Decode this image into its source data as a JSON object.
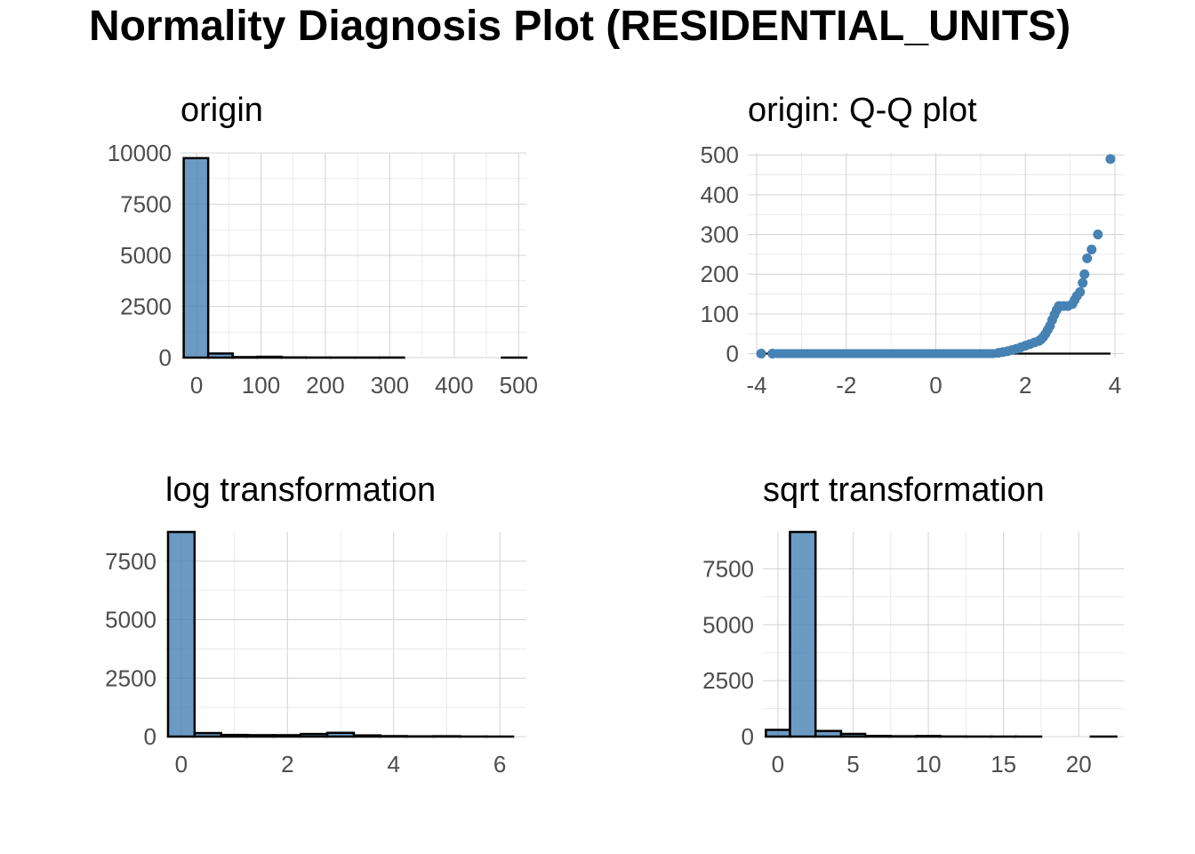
{
  "title": "Normality Diagnosis Plot (RESIDENTIAL_UNITS)",
  "colors": {
    "fill": "#4682b4",
    "outline": "#000000",
    "grid": "#d6d6d6"
  },
  "chart_data": [
    {
      "id": "origin",
      "type": "bar",
      "title": "origin",
      "xlim": [
        -25,
        512
      ],
      "ylim": [
        0,
        10000
      ],
      "xticks": [
        0,
        100,
        200,
        300,
        400,
        500
      ],
      "xtick_labels": [
        "0",
        "100",
        "200",
        "300",
        "400",
        "500"
      ],
      "yticks": [
        0,
        2500,
        5000,
        7500,
        10000
      ],
      "ytick_labels": [
        "0",
        "2500",
        "5000",
        "7500",
        "10000"
      ],
      "bins": [
        {
          "x0": -20,
          "x1": 18,
          "count": 9750
        },
        {
          "x0": 18,
          "x1": 56,
          "count": 200
        },
        {
          "x0": 56,
          "x1": 94,
          "count": 25
        },
        {
          "x0": 94,
          "x1": 132,
          "count": 40
        },
        {
          "x0": 132,
          "x1": 170,
          "count": 10
        },
        {
          "x0": 170,
          "x1": 208,
          "count": 5
        },
        {
          "x0": 208,
          "x1": 246,
          "count": 4
        },
        {
          "x0": 246,
          "x1": 284,
          "count": 3
        },
        {
          "x0": 284,
          "x1": 322,
          "count": 5
        },
        {
          "x0": 322,
          "x1": 360,
          "count": 0
        },
        {
          "x0": 360,
          "x1": 398,
          "count": 0
        },
        {
          "x0": 398,
          "x1": 436,
          "count": 0
        },
        {
          "x0": 436,
          "x1": 474,
          "count": 0
        },
        {
          "x0": 474,
          "x1": 512,
          "count": 1
        }
      ]
    },
    {
      "id": "qq",
      "type": "scatter",
      "title": "origin: Q-Q plot",
      "xlim": [
        -4.2,
        4.2
      ],
      "ylim": [
        -10,
        505
      ],
      "xticks": [
        -4,
        -2,
        0,
        2,
        4
      ],
      "xtick_labels": [
        "-4",
        "-2",
        "0",
        "2",
        "4"
      ],
      "yticks": [
        0,
        100,
        200,
        300,
        400,
        500
      ],
      "ytick_labels": [
        "0",
        "100",
        "200",
        "300",
        "400",
        "500"
      ],
      "reference_line": {
        "x": [
          -4.0,
          3.9
        ],
        "y": [
          0,
          0
        ]
      },
      "points": [
        [
          -3.9,
          0
        ],
        [
          -3.65,
          0
        ],
        [
          1.4,
          2
        ],
        [
          1.5,
          4
        ],
        [
          1.6,
          6
        ],
        [
          1.7,
          9
        ],
        [
          1.8,
          12
        ],
        [
          1.9,
          16
        ],
        [
          2.0,
          20
        ],
        [
          2.1,
          24
        ],
        [
          2.2,
          28
        ],
        [
          2.3,
          32
        ],
        [
          2.35,
          36
        ],
        [
          2.4,
          42
        ],
        [
          2.45,
          50
        ],
        [
          2.5,
          60
        ],
        [
          2.55,
          70
        ],
        [
          2.6,
          85
        ],
        [
          2.65,
          98
        ],
        [
          2.7,
          110
        ],
        [
          2.75,
          120
        ],
        [
          2.85,
          120
        ],
        [
          2.95,
          120
        ],
        [
          3.05,
          125
        ],
        [
          3.1,
          135
        ],
        [
          3.15,
          145
        ],
        [
          3.22,
          155
        ],
        [
          3.28,
          178
        ],
        [
          3.32,
          200
        ],
        [
          3.38,
          240
        ],
        [
          3.48,
          262
        ],
        [
          3.62,
          300
        ],
        [
          3.9,
          490
        ]
      ]
    },
    {
      "id": "log",
      "type": "bar",
      "title": "log transformation",
      "xlim": [
        -0.3,
        6.5
      ],
      "ylim": [
        0,
        8750
      ],
      "xticks": [
        0,
        2,
        4,
        6
      ],
      "xtick_labels": [
        "0",
        "2",
        "4",
        "6"
      ],
      "yticks": [
        0,
        2500,
        5000,
        7500
      ],
      "ytick_labels": [
        "0",
        "2500",
        "5000",
        "7500"
      ],
      "bins": [
        {
          "x0": -0.25,
          "x1": 0.25,
          "count": 8750
        },
        {
          "x0": 0.25,
          "x1": 0.75,
          "count": 150
        },
        {
          "x0": 0.75,
          "x1": 1.25,
          "count": 70
        },
        {
          "x0": 1.25,
          "x1": 1.75,
          "count": 60
        },
        {
          "x0": 1.75,
          "x1": 2.25,
          "count": 60
        },
        {
          "x0": 2.25,
          "x1": 2.75,
          "count": 110
        },
        {
          "x0": 2.75,
          "x1": 3.25,
          "count": 160
        },
        {
          "x0": 3.25,
          "x1": 3.75,
          "count": 50
        },
        {
          "x0": 3.75,
          "x1": 4.25,
          "count": 20
        },
        {
          "x0": 4.25,
          "x1": 4.75,
          "count": 10
        },
        {
          "x0": 4.75,
          "x1": 5.25,
          "count": 15
        },
        {
          "x0": 5.25,
          "x1": 5.75,
          "count": 3
        },
        {
          "x0": 5.75,
          "x1": 6.25,
          "count": 1
        }
      ]
    },
    {
      "id": "sqrt",
      "type": "bar",
      "title": "sqrt transformation",
      "xlim": [
        -1.0,
        23.0
      ],
      "ylim": [
        0,
        9150
      ],
      "xticks": [
        0,
        5,
        10,
        15,
        20
      ],
      "xtick_labels": [
        "0",
        "5",
        "10",
        "15",
        "20"
      ],
      "yticks": [
        0,
        2500,
        5000,
        7500
      ],
      "ytick_labels": [
        "0",
        "2500",
        "5000",
        "7500"
      ],
      "bins": [
        {
          "x0": -0.8,
          "x1": 0.8,
          "count": 300
        },
        {
          "x0": 0.8,
          "x1": 2.5,
          "count": 9150
        },
        {
          "x0": 2.5,
          "x1": 4.2,
          "count": 250
        },
        {
          "x0": 4.2,
          "x1": 5.8,
          "count": 120
        },
        {
          "x0": 5.8,
          "x1": 7.5,
          "count": 30
        },
        {
          "x0": 7.5,
          "x1": 9.2,
          "count": 15
        },
        {
          "x0": 9.2,
          "x1": 10.8,
          "count": 25
        },
        {
          "x0": 10.8,
          "x1": 12.5,
          "count": 5
        },
        {
          "x0": 12.5,
          "x1": 14.2,
          "count": 2
        },
        {
          "x0": 14.2,
          "x1": 15.8,
          "count": 1
        },
        {
          "x0": 15.8,
          "x1": 17.5,
          "count": 1
        },
        {
          "x0": 17.5,
          "x1": 19.2,
          "count": 0
        },
        {
          "x0": 19.2,
          "x1": 20.8,
          "count": 0
        },
        {
          "x0": 20.8,
          "x1": 22.5,
          "count": 1
        }
      ]
    }
  ]
}
